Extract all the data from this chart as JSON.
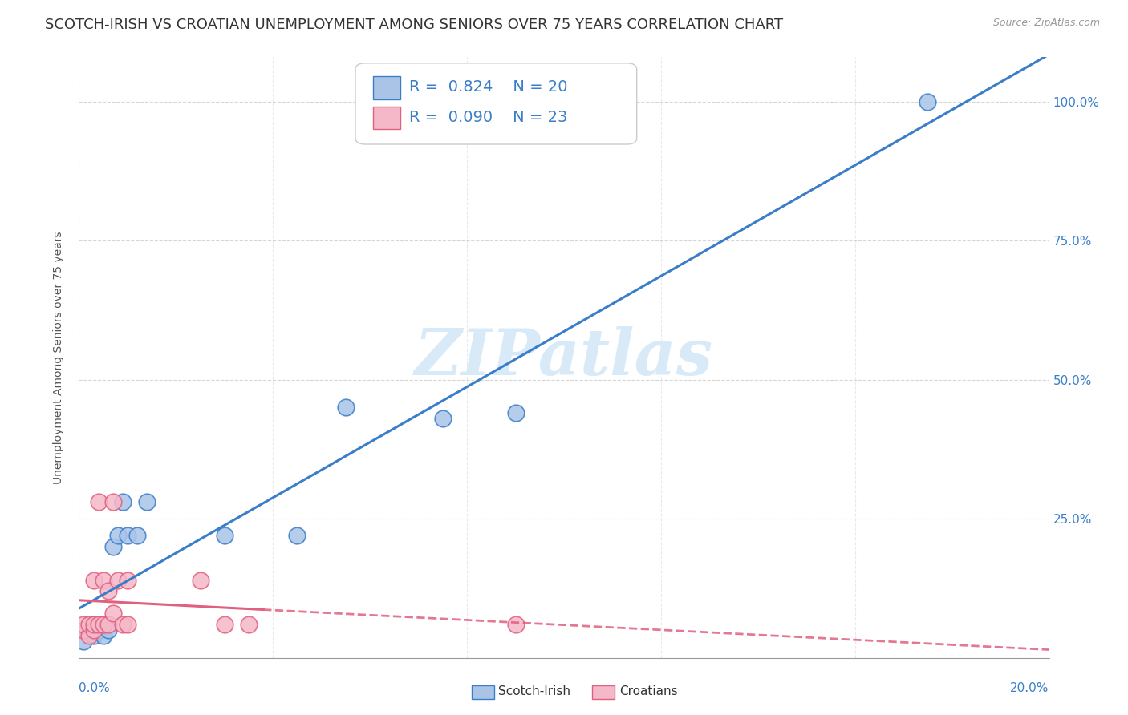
{
  "title": "SCOTCH-IRISH VS CROATIAN UNEMPLOYMENT AMONG SENIORS OVER 75 YEARS CORRELATION CHART",
  "source": "Source: ZipAtlas.com",
  "ylabel": "Unemployment Among Seniors over 75 years",
  "scotch_irish_R": 0.824,
  "scotch_irish_N": 20,
  "croatian_R": 0.09,
  "croatian_N": 23,
  "scotch_irish_color": "#aac4e8",
  "scotch_irish_line_color": "#3a7ec8",
  "croatian_color": "#f5b8c8",
  "croatian_line_color": "#e06080",
  "background_color": "#ffffff",
  "watermark_color": "#d8eaf8",
  "scotch_irish_x": [
    0.001,
    0.002,
    0.003,
    0.003,
    0.004,
    0.005,
    0.005,
    0.006,
    0.007,
    0.008,
    0.009,
    0.01,
    0.012,
    0.014,
    0.03,
    0.045,
    0.055,
    0.075,
    0.09,
    0.175
  ],
  "scotch_irish_y": [
    0.03,
    0.05,
    0.04,
    0.06,
    0.05,
    0.04,
    0.06,
    0.05,
    0.2,
    0.22,
    0.28,
    0.22,
    0.22,
    0.28,
    0.22,
    0.22,
    0.45,
    0.43,
    0.44,
    1.0
  ],
  "croatian_x": [
    0.001,
    0.001,
    0.002,
    0.002,
    0.003,
    0.003,
    0.003,
    0.004,
    0.004,
    0.005,
    0.005,
    0.006,
    0.006,
    0.007,
    0.007,
    0.008,
    0.009,
    0.01,
    0.01,
    0.025,
    0.03,
    0.035,
    0.09
  ],
  "croatian_y": [
    0.05,
    0.06,
    0.04,
    0.06,
    0.05,
    0.06,
    0.14,
    0.06,
    0.28,
    0.14,
    0.06,
    0.12,
    0.06,
    0.08,
    0.28,
    0.14,
    0.06,
    0.06,
    0.14,
    0.14,
    0.06,
    0.06,
    0.06
  ],
  "xmin": 0.0,
  "xmax": 0.2,
  "ymin": 0.0,
  "ymax": 1.08,
  "ytick_values": [
    0.25,
    0.5,
    0.75,
    1.0
  ],
  "ytick_labels": [
    "25.0%",
    "50.0%",
    "75.0%",
    "100.0%"
  ],
  "title_fontsize": 13,
  "axis_label_fontsize": 10,
  "tick_fontsize": 11,
  "legend_fontsize": 14
}
